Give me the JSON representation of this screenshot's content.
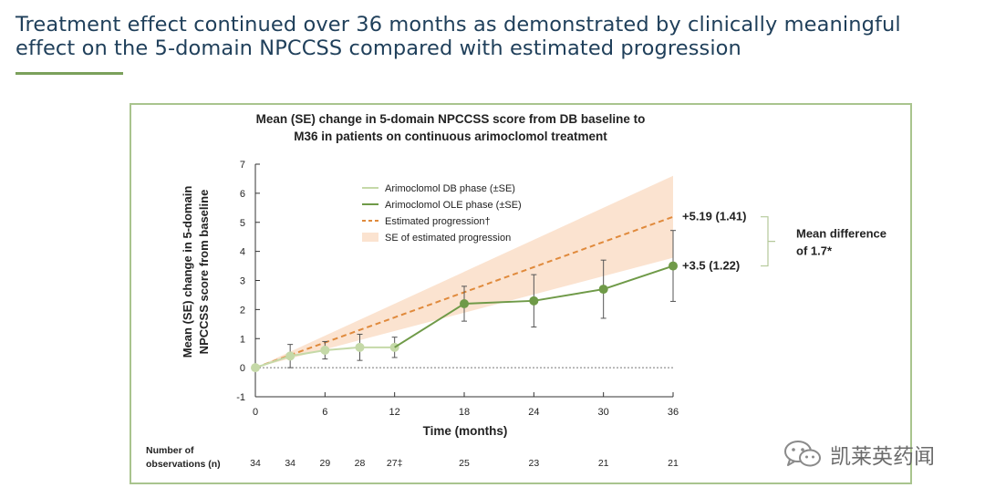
{
  "header": {
    "title_line1": "Treatment effect continued over 36 months as demonstrated by clinically meaningful",
    "title_line2": "effect on the 5-domain NPCCSS compared with estimated progression"
  },
  "chart_data": {
    "type": "line",
    "title_line1": "Mean (SE) change in 5-domain NPCCSS score from DB baseline  to",
    "title_line2": "M36 in patients on continuous arimoclomol treatment",
    "ylabel_line1": "Mean (SE) change in 5-domain",
    "ylabel_line2": "NPCCSS score from baseline",
    "xlabel": "Time (months)",
    "xlim": [
      0,
      36
    ],
    "ylim": [
      -1,
      7
    ],
    "x_ticks": [
      0,
      6,
      12,
      18,
      24,
      30,
      36
    ],
    "y_ticks": [
      -1,
      0,
      1,
      2,
      3,
      4,
      5,
      6,
      7
    ],
    "series": [
      {
        "name": "Arimoclomol DB phase (±SE)",
        "color": "#c5d9a8",
        "points": [
          {
            "x": 0,
            "y": 0,
            "se": 0
          },
          {
            "x": 3,
            "y": 0.4,
            "se": 0.4
          },
          {
            "x": 6,
            "y": 0.6,
            "se": 0.3
          },
          {
            "x": 9,
            "y": 0.7,
            "se": 0.45
          },
          {
            "x": 12,
            "y": 0.7,
            "se": 0.35
          }
        ]
      },
      {
        "name": "Arimoclomol OLE phase (±SE)",
        "color": "#6f9a48",
        "points": [
          {
            "x": 12,
            "y": 0.7,
            "se": 0
          },
          {
            "x": 18,
            "y": 2.2,
            "se": 0.6
          },
          {
            "x": 24,
            "y": 2.3,
            "se": 0.9
          },
          {
            "x": 30,
            "y": 2.7,
            "se": 1.0
          },
          {
            "x": 36,
            "y": 3.5,
            "se": 1.22
          }
        ]
      },
      {
        "name": "Estimated progression†",
        "color": "#e08a3c",
        "x": [
          0,
          36
        ],
        "y": [
          0,
          5.19
        ]
      }
    ],
    "band": {
      "name": "SE of estimated progression",
      "color": "#fbe3d0",
      "x": [
        0,
        36
      ],
      "lower": [
        0,
        3.78
      ],
      "upper": [
        0,
        6.6
      ]
    },
    "annotations": {
      "progression_label": "+5.19 (1.41)",
      "treatment_label": "+3.5 (1.22)",
      "difference_line1": "Mean difference",
      "difference_line2": "of 1.7*"
    },
    "observations": {
      "label_line1": "Number of",
      "label_line2": "observations (n)",
      "x": [
        0,
        3,
        6,
        9,
        12,
        18,
        24,
        30,
        36
      ],
      "n": [
        "34",
        "34",
        "29",
        "28",
        "27‡",
        "25",
        "23",
        "21",
        "21"
      ]
    }
  },
  "watermark": {
    "text": "凯莱英药闻",
    "icon": "wechat-icon"
  }
}
